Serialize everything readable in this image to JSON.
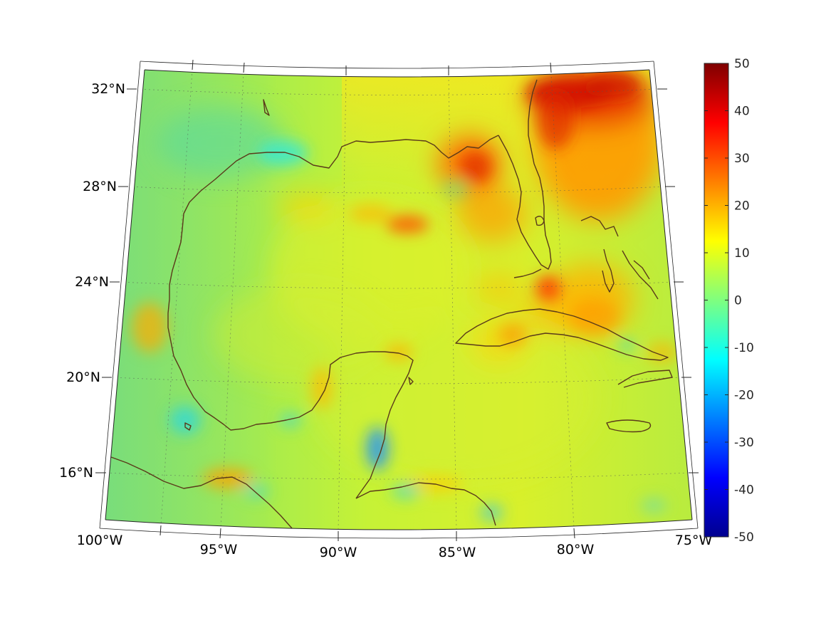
{
  "map": {
    "projection": "conic",
    "lon_range": [
      -100,
      -75
    ],
    "lat_range": [
      14,
      33
    ],
    "lat_labels": [
      "32°N",
      "28°N",
      "24°N",
      "20°N",
      "16°N"
    ],
    "lon_labels": [
      "100°W",
      "95°W",
      "90°W",
      "85°W",
      "80°W",
      "75°W"
    ],
    "grid": true,
    "coastline_color": "#5a3a1a",
    "features": [
      "gulf-of-mexico",
      "florida-peninsula",
      "yucatan-peninsula",
      "cuba",
      "jamaica",
      "bahamas",
      "central-america"
    ]
  },
  "colorbar": {
    "colormap": "jet",
    "range": [
      -50,
      50
    ],
    "tick_labels": [
      "50",
      "40",
      "30",
      "20",
      "10",
      "0",
      "-10",
      "-20",
      "-30",
      "-40",
      "-50"
    ]
  },
  "field": {
    "background_level": 5,
    "hotspots": [
      {
        "region": "southeast-us-atlantic",
        "value": 42
      },
      {
        "region": "florida-gulf-coast",
        "value": 30
      },
      {
        "region": "central-gulf",
        "value": 27
      },
      {
        "region": "north-of-cuba",
        "value": 30
      },
      {
        "region": "bahamas",
        "value": 22
      },
      {
        "region": "gulf-of-honduras",
        "value": -22
      },
      {
        "region": "west-gulf-coast",
        "value": -3
      }
    ]
  }
}
